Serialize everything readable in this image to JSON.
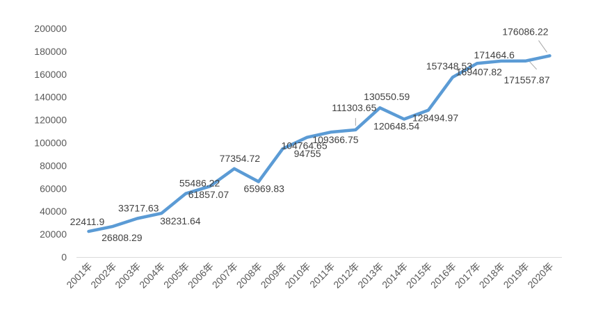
{
  "chart_data": {
    "type": "line",
    "title": "",
    "xlabel": "",
    "ylabel": "",
    "categories": [
      "2001年",
      "2002年",
      "2003年",
      "2004年",
      "2005年",
      "2006年",
      "2007年",
      "2008年",
      "2009年",
      "2010年",
      "2011年",
      "2012年",
      "2013年",
      "2014年",
      "2015年",
      "2016年",
      "2017年",
      "2018年",
      "2019年",
      "2020年"
    ],
    "series": [
      {
        "values": [
          22411.9,
          26808.29,
          33717.63,
          38231.64,
          55486.22,
          61857.07,
          77354.72,
          65969.83,
          94755,
          104764.65,
          109366.75,
          111303.65,
          130550.59,
          120648.54,
          128494.97,
          157348.53,
          169407.82,
          171464.6,
          171557.87,
          176086.22
        ],
        "data_labels": [
          "22411.9",
          "26808.29",
          "33717.63",
          "38231.64",
          "55486.22",
          "61857.07",
          "77354.72",
          "65969.83",
          "94755",
          "104764.65",
          "109366.75",
          "111303.65",
          "130550.59",
          "120648.54",
          "128494.97",
          "157348.53",
          "169407.82",
          "171464.6",
          "171557.87",
          "176086.22"
        ],
        "color": "#5b9bd5"
      }
    ],
    "ylim": [
      0,
      200000
    ],
    "yticks": [
      0,
      20000,
      40000,
      60000,
      80000,
      100000,
      120000,
      140000,
      160000,
      180000,
      200000
    ],
    "ytick_labels": [
      "0",
      "20000",
      "40000",
      "60000",
      "80000",
      "100000",
      "120000",
      "140000",
      "160000",
      "180000",
      "200000"
    ],
    "grid": false,
    "legend": "none"
  }
}
